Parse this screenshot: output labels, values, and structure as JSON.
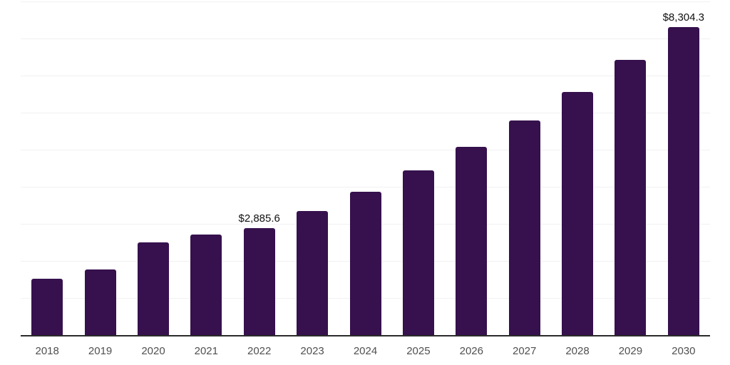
{
  "chart_data": {
    "type": "bar",
    "title": "",
    "xlabel": "",
    "ylabel": "",
    "categories": [
      "2018",
      "2019",
      "2020",
      "2021",
      "2022",
      "2023",
      "2024",
      "2025",
      "2026",
      "2027",
      "2028",
      "2029",
      "2030"
    ],
    "values": [
      1520,
      1770,
      2500,
      2710,
      2885.6,
      3350,
      3865,
      4440,
      5075,
      5790,
      6560,
      7420,
      8304.3
    ],
    "value_labels": [
      "",
      "",
      "",
      "",
      "$2,885.6",
      "",
      "",
      "",
      "",
      "",
      "",
      "",
      "$8,304.3"
    ],
    "ylim": [
      0,
      9000
    ],
    "grid_step": 1000,
    "grid": true,
    "legend": false,
    "colors": {
      "bar": "#36114D",
      "axis_line": "#2b2b2b",
      "gridline": "#f1f1f1",
      "x_tick_label": "#505050",
      "value_label": "#111111",
      "background": "#ffffff"
    }
  }
}
